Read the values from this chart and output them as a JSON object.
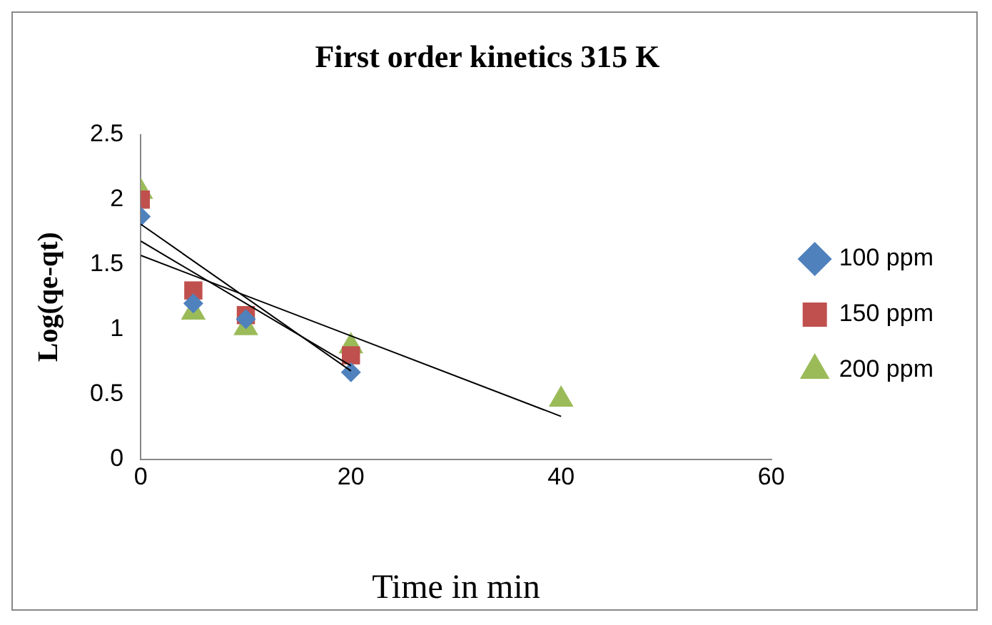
{
  "chart_data": {
    "type": "scatter",
    "title": "First order kinetics 315 K",
    "xlabel": "Time in min",
    "ylabel": "Log(qe-qt)",
    "xlim": [
      0,
      60
    ],
    "xticks": [
      0,
      20,
      40,
      60
    ],
    "ylim": [
      0,
      2.5
    ],
    "yticks": [
      0,
      0.5,
      1,
      1.5,
      2,
      2.5
    ],
    "grid": false,
    "legend": "right",
    "series": [
      {
        "name": "100 ppm",
        "color": "#4f81bd",
        "marker": "diamond",
        "x": [
          0,
          5,
          10,
          20
        ],
        "values": [
          1.87,
          1.2,
          1.08,
          0.67
        ]
      },
      {
        "name": "150 ppm",
        "color": "#c0504d",
        "marker": "square",
        "x": [
          0,
          5,
          10,
          20
        ],
        "values": [
          2.0,
          1.3,
          1.11,
          0.8
        ]
      },
      {
        "name": "200 ppm",
        "color": "#9bbb59",
        "marker": "triangle",
        "x": [
          0,
          5,
          10,
          20,
          40
        ],
        "values": [
          2.06,
          1.13,
          1.01,
          0.87,
          0.46
        ]
      },
      {
        "type": "line",
        "color": "#000000",
        "marker": "none",
        "x": [
          0,
          20
        ],
        "values": [
          1.81,
          0.68
        ]
      },
      {
        "type": "line",
        "color": "#000000",
        "marker": "none",
        "x": [
          0,
          20
        ],
        "values": [
          1.68,
          0.72
        ]
      },
      {
        "type": "line",
        "color": "#000000",
        "marker": "none",
        "x": [
          0,
          40
        ],
        "values": [
          1.57,
          0.33
        ]
      }
    ]
  }
}
